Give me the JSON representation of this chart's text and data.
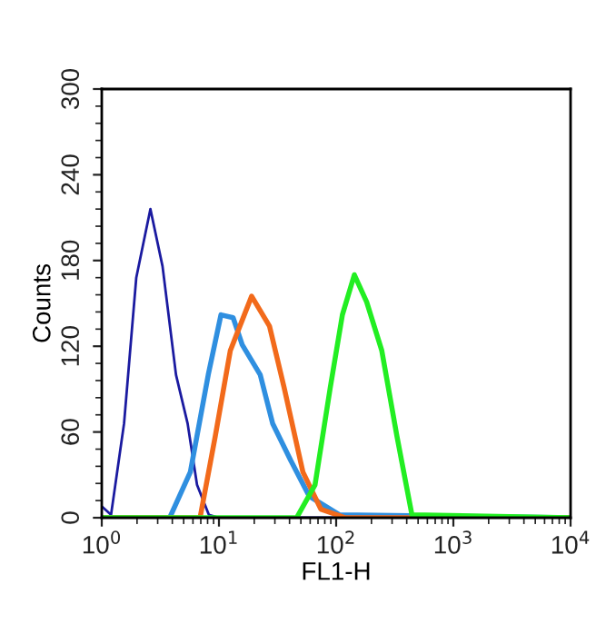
{
  "chart_data": {
    "type": "line",
    "xlabel": "FL1-H",
    "ylabel": "Counts",
    "log": "x",
    "xlim": [
      1,
      10000
    ],
    "ylim": [
      0,
      300
    ],
    "xticks": [
      {
        "value": 1,
        "label": "10$^{0}$"
      },
      {
        "value": 10,
        "label": "10$^{1}$"
      },
      {
        "value": 100,
        "label": "10$^{2}$"
      },
      {
        "value": 1000,
        "label": "10$^{3}$"
      },
      {
        "value": 10000,
        "label": "10$^{4}$"
      }
    ],
    "yticks": [
      0,
      60,
      120,
      180,
      240,
      300
    ],
    "grid": false,
    "legend": false,
    "marker": "none",
    "line_style": "solid",
    "series": [
      {
        "color": "#1a1aa0",
        "x": [
          1,
          1.2,
          1.55,
          1.97,
          2.6,
          3.3,
          4.3,
          5.4,
          6.5,
          8.2,
          10,
          10000
        ],
        "values": [
          8,
          2,
          66,
          168,
          216,
          176,
          100,
          66,
          23,
          2,
          0,
          0
        ]
      },
      {
        "color": "#2f8fe0",
        "x": [
          1,
          3.8,
          5.7,
          8.1,
          10.4,
          13.2,
          15.8,
          22.5,
          28.7,
          41,
          59,
          107,
          10000
        ],
        "values": [
          0,
          0,
          32,
          100,
          142,
          140,
          121,
          100,
          66,
          40,
          15,
          2,
          0
        ]
      },
      {
        "color": "#f26a1b",
        "x": [
          1,
          6.9,
          9.3,
          12.5,
          19,
          27,
          36,
          52,
          74,
          120,
          10000
        ],
        "values": [
          0,
          0,
          57,
          117,
          155,
          134,
          91,
          32,
          6,
          0,
          0
        ]
      },
      {
        "color": "#22ee22",
        "x": [
          1,
          46,
          66,
          89,
          113,
          143,
          182,
          245,
          330,
          443,
          10000
        ],
        "values": [
          0,
          0,
          23,
          91,
          142,
          170,
          151,
          117,
          57,
          2,
          0
        ]
      }
    ]
  }
}
